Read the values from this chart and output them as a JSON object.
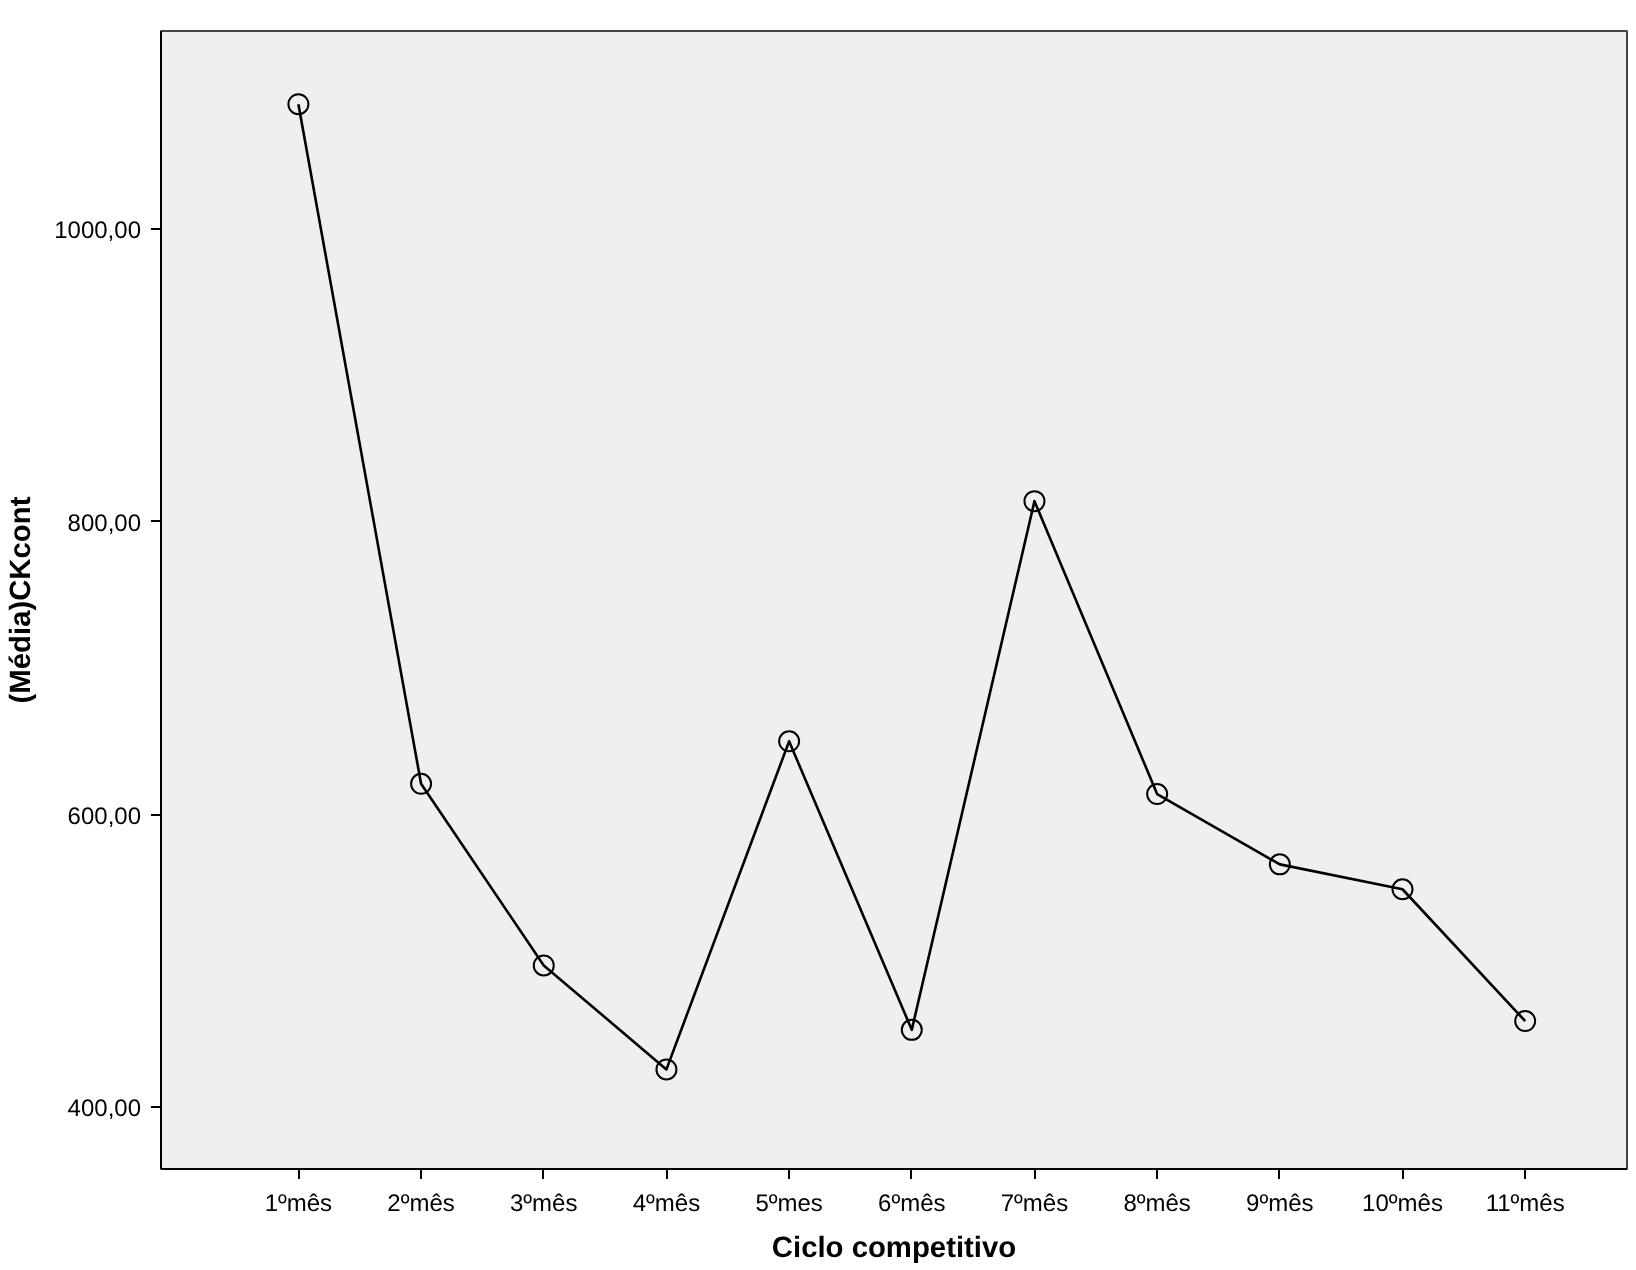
{
  "chart_data": {
    "type": "line",
    "xlabel": "Ciclo competitivo",
    "ylabel": "(Média)CKcont",
    "categories": [
      "1ºmês",
      "2ºmês",
      "3ºmês",
      "4ºmês",
      "5ºmes",
      "6ºmês",
      "7ºmês",
      "8ºmês",
      "9ºmês",
      "10ºmês",
      "11ºmês"
    ],
    "series": [
      {
        "color": "#000000",
        "values": [
          1085,
          621,
          497,
          426,
          650,
          453,
          814,
          614,
          566,
          549,
          459
        ]
      }
    ],
    "ylim": [
      358,
      1135
    ],
    "yticks": [
      {
        "value": 400,
        "label": "400,00"
      },
      {
        "value": 600,
        "label": "600,00"
      },
      {
        "value": 800,
        "label": "800,00"
      },
      {
        "value": 1000,
        "label": "1000,00"
      }
    ],
    "marker": "circle",
    "line_style": "solid",
    "grid": false
  }
}
